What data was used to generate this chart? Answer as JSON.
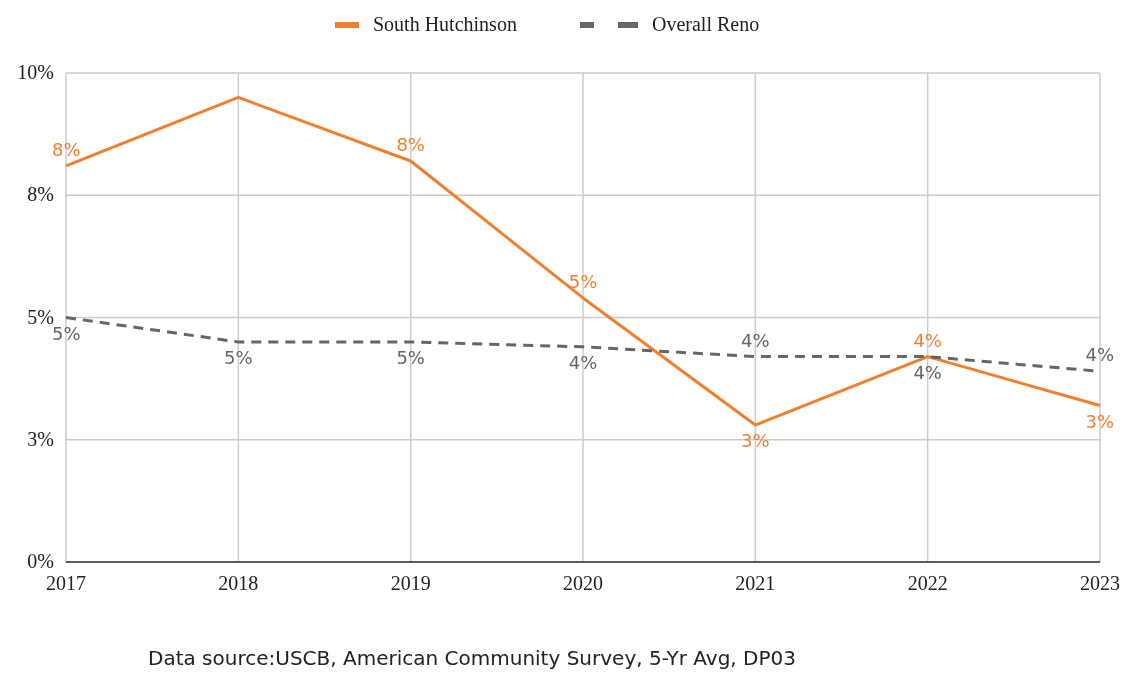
{
  "chart_data": {
    "type": "line",
    "x": [
      2017,
      2018,
      2019,
      2020,
      2021,
      2022,
      2023
    ],
    "xlim": [
      2017,
      2023
    ],
    "xticks": [
      2017,
      2018,
      2019,
      2020,
      2021,
      2022,
      2023
    ],
    "ylim": [
      0,
      10
    ],
    "yticks": [
      {
        "value": 0,
        "label": "0%"
      },
      {
        "value": 2.5,
        "label": "3%"
      },
      {
        "value": 5,
        "label": "5%"
      },
      {
        "value": 7.5,
        "label": "8%"
      },
      {
        "value": 10,
        "label": "10%"
      }
    ],
    "grid": true,
    "legend": "top",
    "marker": "none",
    "series": [
      {
        "name": "South Hutchinson",
        "color": "#f0802f",
        "line_style": "solid",
        "values": [
          8.1,
          9.5,
          8.2,
          5.4,
          2.8,
          4.2,
          3.2
        ],
        "value_labels": [
          "8%",
          null,
          "8%",
          "5%",
          "3%",
          "4%",
          "3%"
        ]
      },
      {
        "name": "Overall Reno",
        "color": "#666666",
        "line_style": "dashed",
        "values": [
          5.0,
          4.5,
          4.5,
          4.4,
          4.2,
          4.2,
          3.9
        ],
        "value_labels": [
          "5%",
          "5%",
          "5%",
          "4%",
          "4%",
          "4%",
          "4%"
        ]
      }
    ],
    "annotations": [
      "Data source:USCB, American Community Survey, 5-Yr Avg, DP03"
    ]
  }
}
